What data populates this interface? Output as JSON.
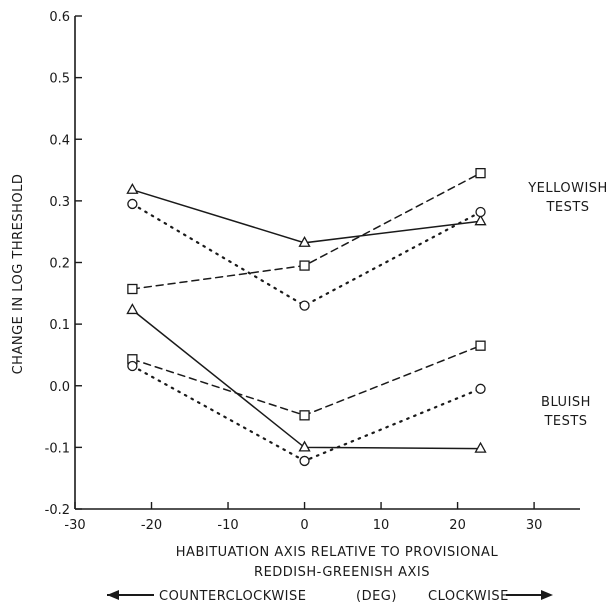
{
  "chart_data": {
    "type": "line",
    "xlabel_line1": "HABITUATION AXIS RELATIVE TO PROVISIONAL",
    "xlabel_line2": "REDDISH-GREENISH AXIS",
    "direction_left": "COUNTERCLOCKWISE",
    "direction_unit": "(DEG)",
    "direction_right": "CLOCKWISE",
    "ylabel": "CHANGE IN LOG THRESHOLD",
    "xlim": [
      -30,
      36
    ],
    "ylim": [
      -0.2,
      0.6
    ],
    "x_ticks": [
      -30,
      -20,
      -10,
      0,
      10,
      20,
      30
    ],
    "x_tick_labels": [
      "-30",
      "-20",
      "-10",
      "0",
      "10",
      "20",
      "30"
    ],
    "y_ticks": [
      -0.2,
      -0.1,
      0.0,
      0.1,
      0.2,
      0.3,
      0.4,
      0.5,
      0.6
    ],
    "y_tick_labels": [
      "-0.2",
      "-0.1",
      "0.0",
      "0.1",
      "0.2",
      "0.3",
      "0.4",
      "0.5",
      "0.6"
    ],
    "group_labels": [
      {
        "line1": "YELLOWISH",
        "line2": "TESTS"
      },
      {
        "line1": "BLUISH",
        "line2": "TESTS"
      }
    ],
    "series": [
      {
        "group": "yellowish",
        "marker": "triangle",
        "line_style": "solid",
        "x": [
          -22.5,
          0,
          23
        ],
        "y": [
          0.318,
          0.232,
          0.267
        ]
      },
      {
        "group": "yellowish",
        "marker": "square",
        "line_style": "dashed",
        "x": [
          -22.5,
          0,
          23
        ],
        "y": [
          0.157,
          0.195,
          0.345
        ]
      },
      {
        "group": "yellowish",
        "marker": "circle",
        "line_style": "dotted",
        "x": [
          -22.5,
          0,
          23
        ],
        "y": [
          0.295,
          0.13,
          0.282
        ]
      },
      {
        "group": "bluish",
        "marker": "triangle",
        "line_style": "solid",
        "x": [
          -22.5,
          0,
          23
        ],
        "y": [
          0.123,
          -0.1,
          -0.102
        ]
      },
      {
        "group": "bluish",
        "marker": "square",
        "line_style": "dashed",
        "x": [
          -22.5,
          0,
          23
        ],
        "y": [
          0.043,
          -0.048,
          0.065
        ]
      },
      {
        "group": "bluish",
        "marker": "circle",
        "line_style": "dotted",
        "x": [
          -22.5,
          0,
          23
        ],
        "y": [
          0.032,
          -0.122,
          -0.005
        ]
      }
    ],
    "grid": false,
    "legend": "none"
  }
}
